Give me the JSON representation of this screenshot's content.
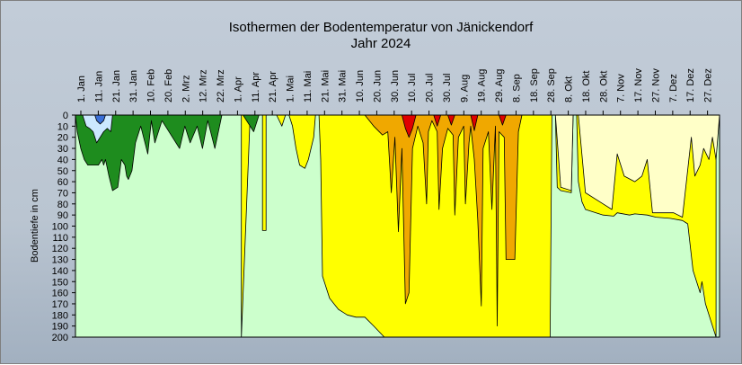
{
  "chart_data": {
    "type": "area",
    "title": "Isothermen der Bodentemperatur von Jänickendorf",
    "subtitle": "Jahr 2024",
    "ylabel": "Bodentiefe in cm",
    "xlabel": "",
    "ylim": [
      0,
      200
    ],
    "y_inverted": true,
    "yticks": [
      0,
      10,
      20,
      30,
      40,
      50,
      60,
      70,
      80,
      90,
      100,
      110,
      120,
      130,
      140,
      150,
      160,
      170,
      180,
      190,
      200
    ],
    "x_ticks": [
      "1. Jan",
      "11. Jan",
      "21. Jan",
      "31. Jan",
      "10. Feb",
      "20. Feb",
      "2. Mrz",
      "12. Mrz",
      "22. Mrz",
      "1. Apr",
      "11. Apr",
      "21. Apr",
      "1. Mai",
      "11. Mai",
      "21. Mai",
      "31. Mai",
      "10. Jun",
      "20. Jun",
      "30. Jun",
      "10. Jul",
      "20. Jul",
      "30. Jul",
      "9. Aug",
      "19. Aug",
      "29. Aug",
      "8. Sep",
      "18. Sep",
      "28. Sep",
      "8. Okt",
      "18. Okt",
      "28. Okt",
      "7. Nov",
      "17. Nov",
      "27. Nov",
      "7. Dez",
      "17. Dez",
      "27. Dez"
    ],
    "x_domain_days": [
      1,
      366
    ],
    "grid": false,
    "legend": "none",
    "colors": {
      "cold": "#3a6fd8",
      "very_cool": "#cce8ff",
      "cool": "#ccffcc",
      "mild": "#1e8c1e",
      "warm": "#ffffc8",
      "warmer": "#ffff00",
      "hot": "#f0a800",
      "very_hot": "#e00000"
    },
    "isotherm_bands": [
      {
        "color": "warmer",
        "boundary_depth_cm": [
          [
            95,
            200
          ],
          [
            100,
            0
          ],
          [
            107,
            0
          ],
          [
            107,
            104
          ],
          [
            109,
            104
          ],
          [
            109,
            0
          ],
          [
            115,
            0
          ],
          [
            118,
            10
          ],
          [
            120,
            0
          ],
          [
            122,
            0
          ],
          [
            124,
            10
          ],
          [
            126,
            30
          ],
          [
            128,
            45
          ],
          [
            131,
            48
          ],
          [
            133,
            40
          ],
          [
            136,
            20
          ],
          [
            137,
            0
          ],
          [
            139,
            0
          ],
          [
            140,
            40
          ],
          [
            141,
            145
          ],
          [
            145,
            165
          ],
          [
            150,
            175
          ],
          [
            155,
            180
          ],
          [
            160,
            182
          ],
          [
            165,
            182
          ],
          [
            170,
            190
          ],
          [
            176,
            200
          ],
          [
            270,
            200
          ],
          [
            271,
            0
          ],
          [
            273,
            0
          ],
          [
            274,
            65
          ],
          [
            276,
            68
          ],
          [
            282,
            70
          ],
          [
            283,
            0
          ],
          [
            285,
            0
          ],
          [
            286,
            60
          ],
          [
            288,
            78
          ],
          [
            290,
            85
          ],
          [
            300,
            90
          ],
          [
            306,
            91
          ],
          [
            308,
            88
          ],
          [
            315,
            90
          ],
          [
            318,
            89
          ],
          [
            325,
            90
          ],
          [
            330,
            92
          ],
          [
            338,
            93
          ],
          [
            345,
            95
          ],
          [
            348,
            98
          ],
          [
            351,
            140
          ],
          [
            355,
            160
          ],
          [
            356,
            150
          ],
          [
            358,
            170
          ],
          [
            361,
            185
          ],
          [
            364,
            200
          ]
        ]
      },
      {
        "color": "hot",
        "boundary_depth_cm": [
          [
            165,
            0
          ],
          [
            170,
            10
          ],
          [
            175,
            18
          ],
          [
            178,
            15
          ],
          [
            180,
            70
          ],
          [
            182,
            20
          ],
          [
            184,
            105
          ],
          [
            186,
            30
          ],
          [
            188,
            170
          ],
          [
            190,
            160
          ],
          [
            192,
            30
          ],
          [
            195,
            10
          ],
          [
            198,
            25
          ],
          [
            200,
            80
          ],
          [
            201,
            15
          ],
          [
            203,
            5
          ],
          [
            206,
            15
          ],
          [
            207,
            85
          ],
          [
            209,
            30
          ],
          [
            212,
            12
          ],
          [
            215,
            18
          ],
          [
            216,
            90
          ],
          [
            218,
            20
          ],
          [
            221,
            10
          ],
          [
            222,
            80
          ],
          [
            224,
            25
          ],
          [
            225,
            10
          ],
          [
            227,
            40
          ],
          [
            229,
            95
          ],
          [
            231,
            172
          ],
          [
            232,
            30
          ],
          [
            235,
            15
          ],
          [
            237,
            85
          ],
          [
            239,
            10
          ],
          [
            240,
            190
          ],
          [
            241,
            15
          ],
          [
            244,
            20
          ],
          [
            245,
            130
          ],
          [
            250,
            130
          ],
          [
            252,
            15
          ],
          [
            254,
            0
          ],
          [
            256,
            0
          ]
        ]
      },
      {
        "color": "very_hot",
        "boundary_depth_cm": [
          [
            186,
            0
          ],
          [
            188,
            12
          ],
          [
            190,
            20
          ],
          [
            192,
            12
          ],
          [
            194,
            0
          ],
          [
            204,
            0
          ],
          [
            206,
            10
          ],
          [
            208,
            0
          ],
          [
            212,
            0
          ],
          [
            214,
            9
          ],
          [
            216,
            0
          ],
          [
            225,
            0
          ],
          [
            227,
            14
          ],
          [
            229,
            0
          ],
          [
            241,
            0
          ],
          [
            243,
            9
          ],
          [
            245,
            0
          ]
        ]
      },
      {
        "color": "warm",
        "boundary_depth_cm": [
          [
            271,
            0
          ],
          [
            273,
            0
          ],
          [
            276,
            65
          ],
          [
            282,
            68
          ],
          [
            283,
            0
          ],
          [
            286,
            0
          ],
          [
            290,
            70
          ],
          [
            300,
            80
          ],
          [
            305,
            85
          ],
          [
            308,
            35
          ],
          [
            312,
            55
          ],
          [
            318,
            60
          ],
          [
            322,
            55
          ],
          [
            325,
            40
          ],
          [
            328,
            88
          ],
          [
            340,
            88
          ],
          [
            345,
            92
          ],
          [
            350,
            20
          ],
          [
            352,
            55
          ],
          [
            355,
            45
          ],
          [
            357,
            30
          ],
          [
            360,
            40
          ],
          [
            362,
            20
          ],
          [
            364,
            40
          ],
          [
            366,
            0
          ]
        ]
      },
      {
        "color": "mild",
        "boundary_depth_cm": [
          [
            1,
            0
          ],
          [
            2,
            15
          ],
          [
            4,
            30
          ],
          [
            6,
            40
          ],
          [
            8,
            45
          ],
          [
            12,
            45
          ],
          [
            14,
            45
          ],
          [
            16,
            40
          ],
          [
            17,
            45
          ],
          [
            18,
            40
          ],
          [
            20,
            55
          ],
          [
            22,
            68
          ],
          [
            25,
            65
          ],
          [
            27,
            40
          ],
          [
            29,
            45
          ],
          [
            30,
            55
          ],
          [
            31,
            58
          ],
          [
            33,
            50
          ],
          [
            35,
            25
          ],
          [
            38,
            10
          ],
          [
            42,
            35
          ],
          [
            44,
            5
          ],
          [
            46,
            25
          ],
          [
            50,
            5
          ],
          [
            60,
            30
          ],
          [
            63,
            10
          ],
          [
            66,
            25
          ],
          [
            70,
            10
          ],
          [
            73,
            30
          ],
          [
            76,
            5
          ],
          [
            80,
            30
          ],
          [
            84,
            0
          ],
          [
            96,
            0
          ],
          [
            102,
            15
          ],
          [
            105,
            0
          ]
        ]
      },
      {
        "color": "very_cool",
        "boundary_depth_cm": [
          [
            5,
            0
          ],
          [
            7,
            10
          ],
          [
            9,
            12
          ],
          [
            11,
            15
          ],
          [
            13,
            25
          ],
          [
            15,
            20
          ],
          [
            17,
            15
          ],
          [
            19,
            12
          ],
          [
            21,
            15
          ],
          [
            22,
            0
          ]
        ]
      },
      {
        "color": "cold",
        "boundary_depth_cm": [
          [
            12,
            0
          ],
          [
            13,
            5
          ],
          [
            15,
            8
          ],
          [
            17,
            5
          ],
          [
            18,
            0
          ]
        ]
      }
    ]
  }
}
